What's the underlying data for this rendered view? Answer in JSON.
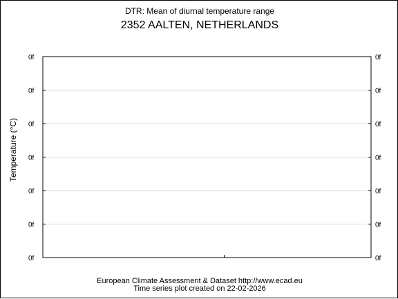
{
  "chart_data": {
    "type": "line",
    "title": "DTR: Mean of diurnal temperature range",
    "subtitle": "2352 AALTEN, NETHERLANDS",
    "ylabel": "Temperature (°C)",
    "xlabel": "",
    "y_tick_labels": [
      "0f",
      "0f",
      "0f",
      "0f",
      "0f",
      "0f",
      "0f"
    ],
    "ylim": [
      0,
      6
    ],
    "grid": true,
    "series": []
  },
  "footer": {
    "line1": "European Climate Assessment & Dataset  http://www.ecad.eu",
    "line2": "Time series plot created on 22-02-2026"
  },
  "colors": {
    "axis": "#000000",
    "grid": "#d9d9d9"
  }
}
